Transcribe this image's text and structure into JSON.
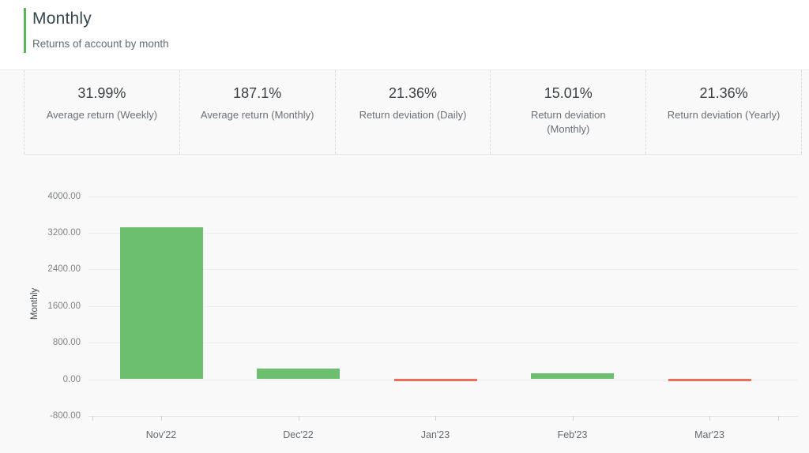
{
  "header": {
    "title": "Monthly",
    "subtitle": "Returns of account by month",
    "accent_color": "#57b75b"
  },
  "stats": [
    {
      "value": "31.99%",
      "label": "Average return (Weekly)"
    },
    {
      "value": "187.1%",
      "label": "Average return (Monthly)"
    },
    {
      "value": "21.36%",
      "label": "Return deviation (Daily)"
    },
    {
      "value": "15.01%",
      "label": "Return deviation (Monthly)"
    },
    {
      "value": "21.36%",
      "label": "Return deviation (Yearly)"
    }
  ],
  "chart_data": {
    "type": "bar",
    "categories": [
      "Nov'22",
      "Dec'22",
      "Jan'23",
      "Feb'23",
      "Mar'23"
    ],
    "values": [
      3320,
      230,
      -20,
      130,
      -40
    ],
    "title": "",
    "xlabel": "",
    "ylabel": "Monthly",
    "ylim": [
      -800,
      4000
    ],
    "yticks": [
      4000,
      3200,
      2400,
      1600,
      800,
      0,
      -800
    ],
    "ytick_labels": [
      "4000.00",
      "3200.00",
      "2400.00",
      "1600.00",
      "800.00",
      "0.00",
      "-800.00"
    ],
    "grid": true,
    "legend": false,
    "positive_color": "#6bbf6f",
    "negative_color": "#ed6d58"
  }
}
